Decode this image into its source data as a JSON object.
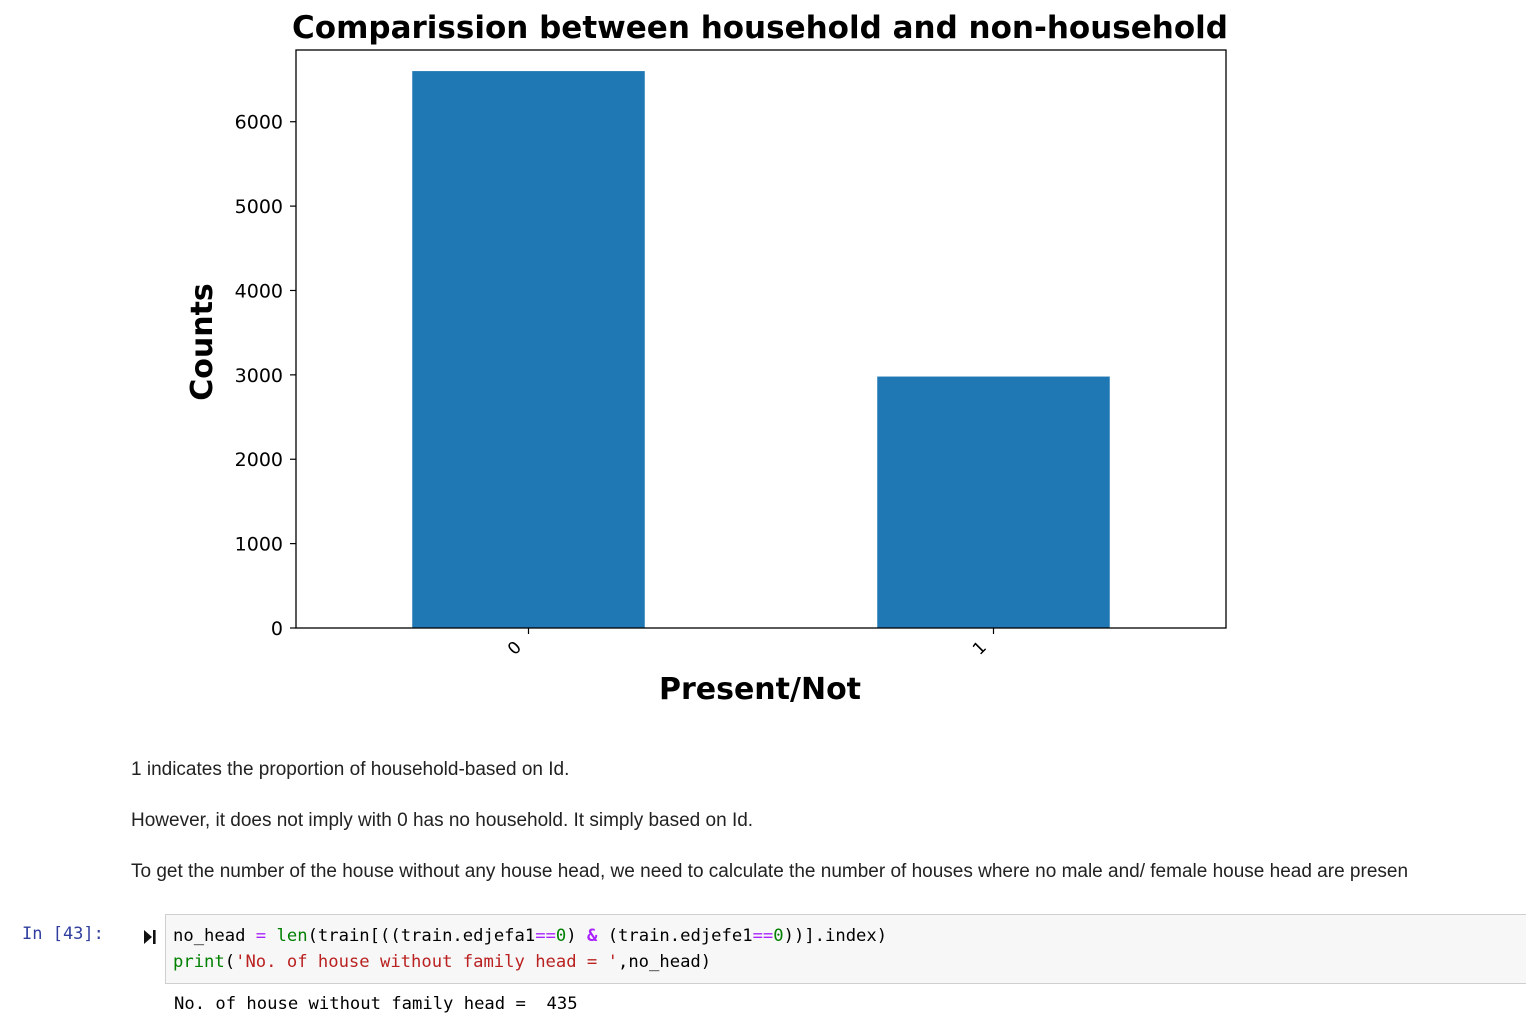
{
  "chart_data": {
    "type": "bar",
    "title": "Comparission between household and non-household",
    "xlabel": "Present/Not",
    "ylabel": "Counts",
    "categories": [
      "0",
      "1"
    ],
    "values": [
      6600,
      2980
    ],
    "ylim": [
      0,
      6850
    ],
    "yticks": [
      0,
      1000,
      2000,
      3000,
      4000,
      5000,
      6000
    ],
    "bar_color": "#1f77b4",
    "grid": false
  },
  "markdown": {
    "para1": "1 indicates the proportion of household-based on Id.",
    "para2": "However, it does not imply with 0 has no household. It simply based on Id.",
    "para3": "To get the number of the house without any house head, we need to calculate the number of houses where no male and/ female house head are presen"
  },
  "cell": {
    "prompt": "In [43]:",
    "line1": {
      "a": "no_head ",
      "b": "=",
      "c": " ",
      "d": "len",
      "e": "(train[((train.edjefa1",
      "f": "==",
      "g": "0",
      "h": ") ",
      "i": "&",
      "j": " (train.edjefe1",
      "k": "==",
      "l": "0",
      "m": "))].index)"
    },
    "line2": {
      "a": "print",
      "b": "(",
      "c": "'No. of house without family head = '",
      "d": ",no_head)"
    },
    "output": "No. of house without family head =  435"
  }
}
